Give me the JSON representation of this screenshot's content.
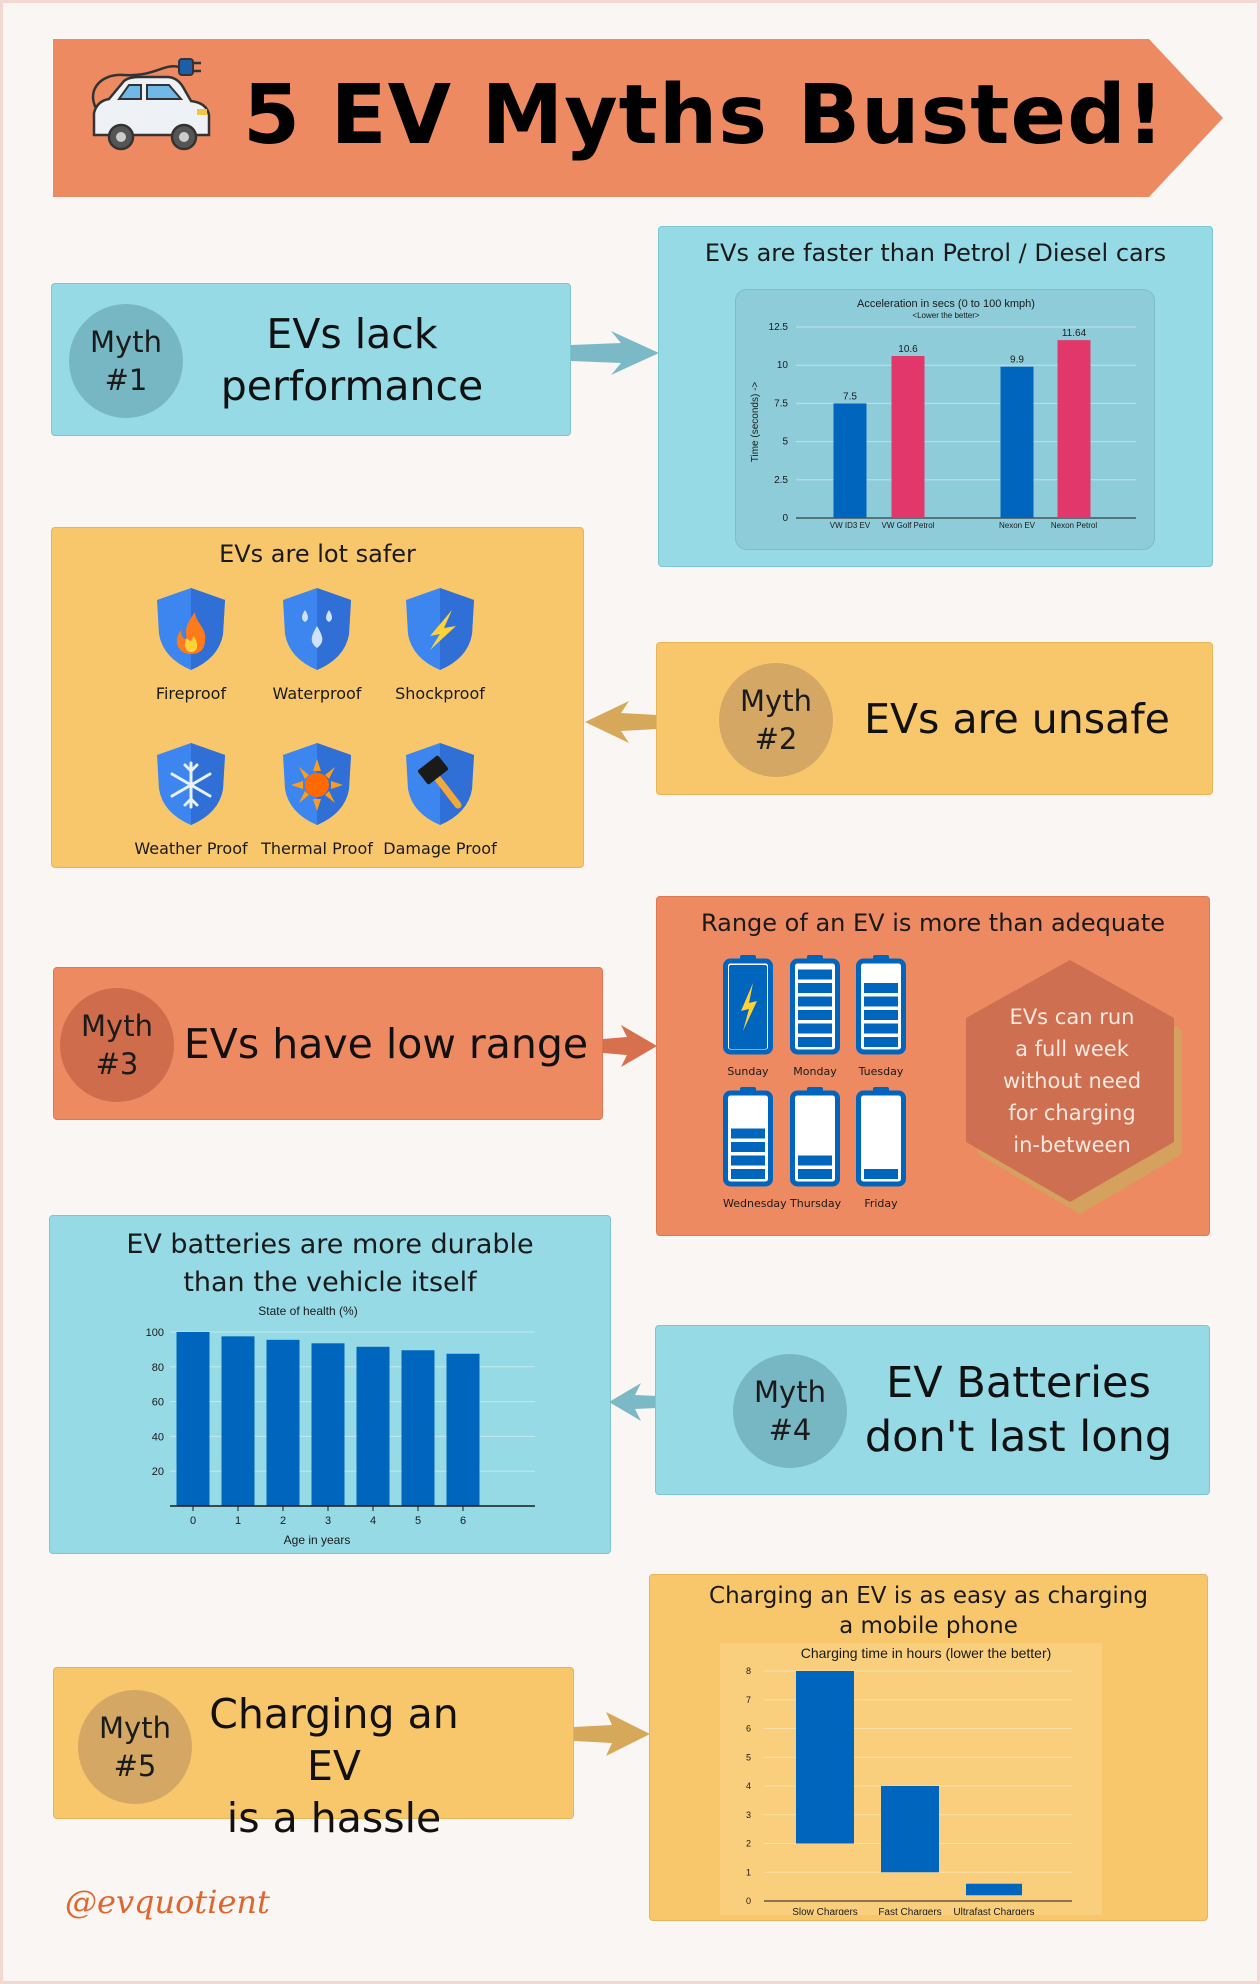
{
  "header": {
    "title": "5 EV Myths Busted!"
  },
  "colors": {
    "blue": "#96dae6",
    "yellow": "#f8c76c",
    "orange": "#ee8a62",
    "bar_blue": "#0065bd",
    "bar_pink": "#e2376a"
  },
  "myths": [
    {
      "tag_line1": "Myth",
      "tag_line2": "#1",
      "text_line1": "EVs lack",
      "text_line2": "performance"
    },
    {
      "tag_line1": "Myth",
      "tag_line2": "#2",
      "text_line1": "EVs are unsafe",
      "text_line2": ""
    },
    {
      "tag_line1": "Myth",
      "tag_line2": "#3",
      "text_line1": "EVs have low range",
      "text_line2": ""
    },
    {
      "tag_line1": "Myth",
      "tag_line2": "#4",
      "text_line1": "EV Batteries",
      "text_line2": "don't last long"
    },
    {
      "tag_line1": "Myth",
      "tag_line2": "#5",
      "text_line1": "Charging an EV",
      "text_line2": "is a hassle"
    }
  ],
  "facts": {
    "performance": {
      "title": "EVs are faster than Petrol / Diesel cars"
    },
    "safety": {
      "title": "EVs are lot safer",
      "items": [
        {
          "label": "Fireproof",
          "icon": "fire-shield-icon"
        },
        {
          "label": "Waterproof",
          "icon": "water-shield-icon"
        },
        {
          "label": "Shockproof",
          "icon": "lightning-shield-icon"
        },
        {
          "label": "Weather Proof",
          "icon": "snowflake-shield-icon"
        },
        {
          "label": "Thermal Proof",
          "icon": "sun-shield-icon"
        },
        {
          "label": "Damage Proof",
          "icon": "hammer-shield-icon"
        }
      ]
    },
    "range": {
      "title": "Range of an EV is more than adequate",
      "days": [
        {
          "label": "Sunday",
          "bars": 5,
          "charging": true
        },
        {
          "label": "Monday",
          "bars": 6,
          "charging": false
        },
        {
          "label": "Tuesday",
          "bars": 5,
          "charging": false
        },
        {
          "label": "Wednesday",
          "bars": 4,
          "charging": false
        },
        {
          "label": "Thursday",
          "bars": 2,
          "charging": false
        },
        {
          "label": "Friday",
          "bars": 1,
          "charging": false
        }
      ],
      "callout": [
        "EVs can run",
        "a full week",
        "without need",
        "for charging",
        "in-between"
      ]
    },
    "durability": {
      "title_line1": "EV batteries are more durable",
      "title_line2": "than the vehicle itself"
    },
    "charging": {
      "title_line1": "Charging an EV is as easy as charging",
      "title_line2": "a mobile phone"
    }
  },
  "footer": {
    "handle": "@evquotient"
  },
  "chart_data": [
    {
      "type": "bar",
      "title": "Acceleration in secs (0 to 100 kmph)",
      "subtitle": "<Lower the better>",
      "ylabel": "Time (seconds) ->",
      "xlabel": "",
      "categories": [
        "VW ID3 EV",
        "VW Golf Petrol",
        "Nexon EV",
        "Nexon Petrol"
      ],
      "values": [
        7.5,
        10.6,
        9.9,
        11.64
      ],
      "value_labels": [
        "7.5",
        "10.6",
        "9.9",
        "11.64"
      ],
      "colors": [
        "#0065bd",
        "#e2376a",
        "#0065bd",
        "#e2376a"
      ],
      "ylim": [
        0,
        12.5
      ],
      "yticks": [
        "0",
        "2.5",
        "5",
        "7.5",
        "10",
        "12.5"
      ]
    },
    {
      "type": "bar",
      "title": "State of health (%)",
      "xlabel": "Age in years",
      "ylabel": "",
      "categories": [
        "0",
        "1",
        "2",
        "3",
        "4",
        "5",
        "6"
      ],
      "values": [
        100,
        97.5,
        95.5,
        93.5,
        91.5,
        89.5,
        87.5
      ],
      "ylim": [
        0,
        105
      ],
      "yticks": [
        "20",
        "40",
        "60",
        "80",
        "100"
      ]
    },
    {
      "type": "bar",
      "title": "Charging time in hours (lower the better)",
      "xlabel": "",
      "ylabel": "",
      "categories": [
        "Slow Chargers",
        "Fast Chargers",
        "Ultrafast Chargers"
      ],
      "ranges": [
        [
          2,
          8
        ],
        [
          1,
          4
        ],
        [
          0.2,
          0.6
        ]
      ],
      "ylim": [
        0,
        8
      ],
      "yticks": [
        "0",
        "1",
        "2",
        "3",
        "4",
        "5",
        "6",
        "7",
        "8"
      ]
    }
  ]
}
